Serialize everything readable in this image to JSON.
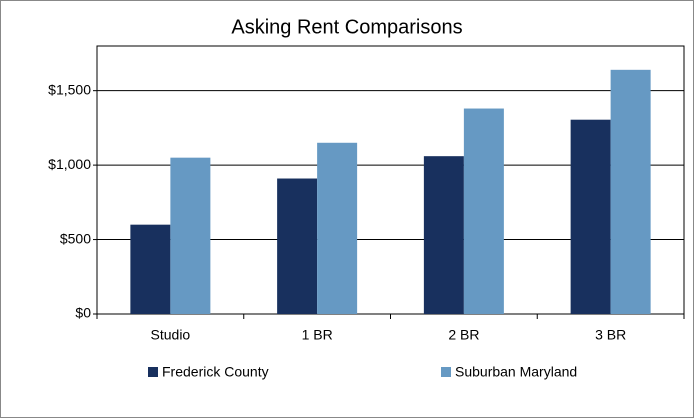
{
  "chart_data": {
    "type": "bar",
    "title": "Asking Rent Comparisons",
    "categories": [
      "Studio",
      "1 BR",
      "2 BR",
      "3 BR"
    ],
    "series": [
      {
        "name": "Frederick County",
        "color": "#18305e",
        "values": [
          600,
          910,
          1060,
          1305
        ]
      },
      {
        "name": "Suburban Maryland",
        "color": "#6699c3",
        "values": [
          1050,
          1150,
          1380,
          1640
        ]
      }
    ],
    "ylim": [
      0,
      1800
    ],
    "yticks": [
      {
        "value": 0,
        "label": "$0"
      },
      {
        "value": 500,
        "label": "$500"
      },
      {
        "value": 1000,
        "label": "$1,000"
      },
      {
        "value": 1500,
        "label": "$1,500"
      }
    ],
    "grid": true,
    "legend": "bottom"
  }
}
